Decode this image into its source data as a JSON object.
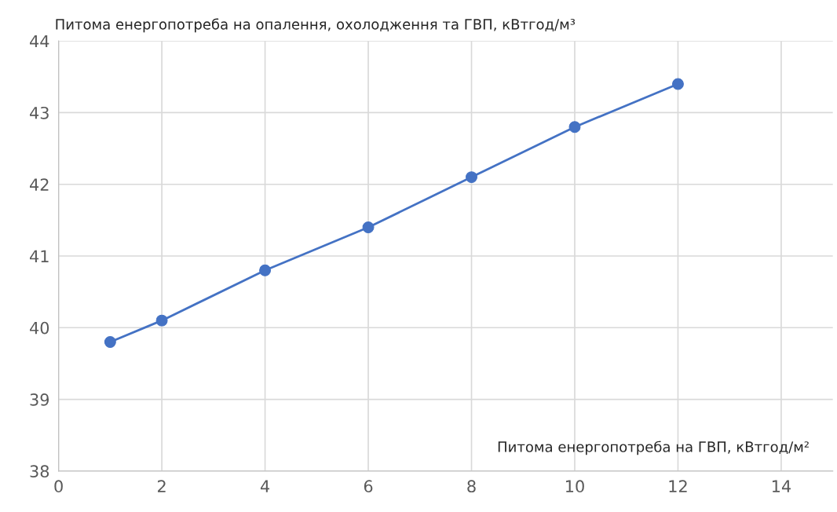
{
  "chart_data": {
    "type": "line",
    "xlabel": "Питома енергопотреба на ГВП, кВтгод/м²",
    "ylabel": "Питома енергопотреба на опалення, охолодження та ГВП, кВтгод/м³",
    "x": [
      1,
      2,
      4,
      6,
      8,
      10,
      12
    ],
    "series": [
      {
        "color": "#4472c4",
        "values": [
          39.8,
          40.1,
          40.8,
          41.4,
          42.1,
          42.8,
          43.4
        ]
      }
    ],
    "xlim": [
      0,
      15
    ],
    "xticks": [
      0,
      2,
      4,
      6,
      8,
      10,
      12,
      14
    ],
    "ylim": [
      38,
      44
    ],
    "yticks": [
      38,
      39,
      40,
      41,
      42,
      43,
      44
    ],
    "grid": true,
    "legend": false,
    "marker": "circle",
    "line_style": "solid"
  }
}
